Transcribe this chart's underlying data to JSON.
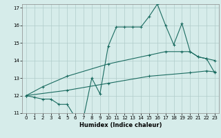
{
  "title": "",
  "xlabel": "Humidex (Indice chaleur)",
  "xlim": [
    -0.5,
    23.5
  ],
  "ylim": [
    11,
    17.2
  ],
  "yticks": [
    11,
    12,
    13,
    14,
    15,
    16,
    17
  ],
  "xticks": [
    0,
    1,
    2,
    3,
    4,
    5,
    6,
    7,
    8,
    9,
    10,
    11,
    12,
    13,
    14,
    15,
    16,
    17,
    18,
    19,
    20,
    21,
    22,
    23
  ],
  "background_color": "#d6ecea",
  "grid_color": "#b0ccca",
  "line_color": "#1a6b60",
  "line1_x": [
    0,
    1,
    2,
    3,
    4,
    5,
    6,
    7,
    8,
    9,
    10,
    11,
    12,
    13,
    14,
    15,
    16,
    17,
    18,
    19,
    20,
    21,
    22,
    23
  ],
  "line1_y": [
    12.0,
    11.9,
    11.8,
    11.8,
    11.5,
    11.5,
    10.75,
    10.75,
    13.0,
    12.1,
    14.8,
    15.9,
    15.9,
    15.9,
    15.9,
    16.5,
    17.2,
    16.0,
    14.9,
    16.1,
    14.5,
    14.2,
    14.1,
    13.3
  ],
  "line2_x": [
    0,
    2,
    5,
    10,
    15,
    17,
    19,
    20,
    21,
    22,
    23
  ],
  "line2_y": [
    12.0,
    12.5,
    13.1,
    13.8,
    14.3,
    14.5,
    14.5,
    14.5,
    14.2,
    14.1,
    14.0
  ],
  "line3_x": [
    0,
    5,
    10,
    15,
    20,
    22,
    23
  ],
  "line3_y": [
    12.0,
    12.3,
    12.7,
    13.1,
    13.3,
    13.4,
    13.35
  ],
  "marker": "+",
  "markersize": 3,
  "linewidth": 0.8
}
